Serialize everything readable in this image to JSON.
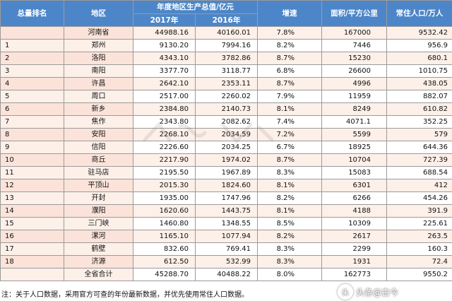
{
  "headers": {
    "rank": "总量排名",
    "region": "地区",
    "gdp_group": "年度地区生产总值/亿元",
    "year_2017": "2017年",
    "year_2016": "2016年",
    "growth": "增速",
    "area": "面积/平方公里",
    "population": "常住人口/万人"
  },
  "rows": [
    {
      "rank": "",
      "region": "河南省",
      "gdp2017": "44988.16",
      "gdp2016": "40160.01",
      "growth": "7.8%",
      "area": "167000",
      "pop": "9532.42"
    },
    {
      "rank": "1",
      "region": "郑州",
      "gdp2017": "9130.20",
      "gdp2016": "7994.16",
      "growth": "8.2%",
      "area": "7446",
      "pop": "956.9"
    },
    {
      "rank": "2",
      "region": "洛阳",
      "gdp2017": "4343.10",
      "gdp2016": "3782.86",
      "growth": "8.7%",
      "area": "15230",
      "pop": "680.1"
    },
    {
      "rank": "3",
      "region": "南阳",
      "gdp2017": "3377.70",
      "gdp2016": "3118.77",
      "growth": "6.8%",
      "area": "26600",
      "pop": "1010.75"
    },
    {
      "rank": "4",
      "region": "许昌",
      "gdp2017": "2642.10",
      "gdp2016": "2353.11",
      "growth": "8.7%",
      "area": "4996",
      "pop": "438.05"
    },
    {
      "rank": "5",
      "region": "周口",
      "gdp2017": "2517.00",
      "gdp2016": "2260.02",
      "growth": "7.9%",
      "area": "11959",
      "pop": "882.07"
    },
    {
      "rank": "6",
      "region": "新乡",
      "gdp2017": "2384.80",
      "gdp2016": "2140.73",
      "growth": "8.1%",
      "area": "8249",
      "pop": "610.82"
    },
    {
      "rank": "7",
      "region": "焦作",
      "gdp2017": "2343.80",
      "gdp2016": "2082.62",
      "growth": "7.4%",
      "area": "4071.1",
      "pop": "352.25"
    },
    {
      "rank": "8",
      "region": "安阳",
      "gdp2017": "2268.10",
      "gdp2016": "2034.59",
      "growth": "7.2%",
      "area": "5599",
      "pop": "579"
    },
    {
      "rank": "9",
      "region": "信阳",
      "gdp2017": "2226.60",
      "gdp2016": "2034.25",
      "growth": "6.7%",
      "area": "18925",
      "pop": "644.36"
    },
    {
      "rank": "10",
      "region": "商丘",
      "gdp2017": "2217.90",
      "gdp2016": "1974.02",
      "growth": "8.7%",
      "area": "10704",
      "pop": "727.39"
    },
    {
      "rank": "11",
      "region": "驻马店",
      "gdp2017": "2195.50",
      "gdp2016": "1967.89",
      "growth": "8.3%",
      "area": "15083",
      "pop": "688.54"
    },
    {
      "rank": "12",
      "region": "平顶山",
      "gdp2017": "2015.30",
      "gdp2016": "1824.60",
      "growth": "8.1%",
      "area": "6301",
      "pop": "412"
    },
    {
      "rank": "13",
      "region": "开封",
      "gdp2017": "1935.00",
      "gdp2016": "1747.96",
      "growth": "8.2%",
      "area": "6266",
      "pop": "454.26"
    },
    {
      "rank": "14",
      "region": "濮阳",
      "gdp2017": "1620.60",
      "gdp2016": "1443.75",
      "growth": "8.1%",
      "area": "4188",
      "pop": "391.9"
    },
    {
      "rank": "15",
      "region": "三门峡",
      "gdp2017": "1460.80",
      "gdp2016": "1348.55",
      "growth": "8.5%",
      "area": "10309",
      "pop": "225.61"
    },
    {
      "rank": "16",
      "region": "漯河",
      "gdp2017": "1165.10",
      "gdp2016": "1077.94",
      "growth": "8.2%",
      "area": "2617",
      "pop": "263.5"
    },
    {
      "rank": "17",
      "region": "鹤壁",
      "gdp2017": "832.60",
      "gdp2016": "769.41",
      "growth": "8.3%",
      "area": "2299",
      "pop": "160.3"
    },
    {
      "rank": "18",
      "region": "济源",
      "gdp2017": "612.50",
      "gdp2016": "532.99",
      "growth": "8.3%",
      "area": "1931",
      "pop": "72.4"
    },
    {
      "rank": "",
      "region": "全省合计",
      "gdp2017": "45288.70",
      "gdp2016": "40488.22",
      "growth": "8.0%",
      "area": "162773",
      "pop": "9550.2"
    }
  ],
  "footnote": "注：关于人口数据，采用官方可查的年份最新数据，并优先使用常住人口数据。",
  "watermark": {
    "brand_text": "头条@古今",
    "brand_icon": "toutiao-logo-icon"
  },
  "colors": {
    "header_bg": "#4d86c8",
    "row_tint": "#fbe3d9",
    "row_tint_light": "#fdf0e9"
  }
}
